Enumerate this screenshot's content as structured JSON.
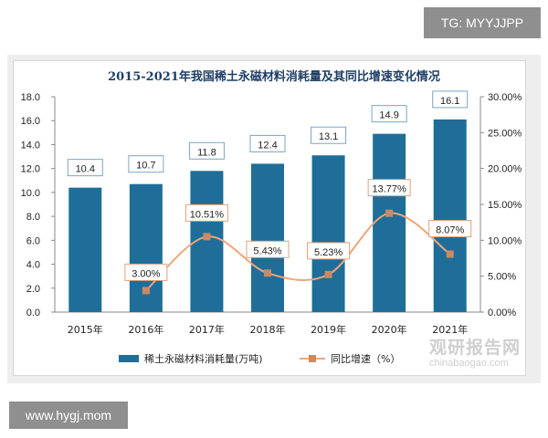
{
  "watermark_top": "TG: MYYJJPP",
  "watermark_bottom": "www.hygj.mom",
  "logo": {
    "name": "观研报告网",
    "url": "chinabaogao.com"
  },
  "chart_data": {
    "type": "bar",
    "title": "2015-2021年我国稀土永磁材料消耗量及其同比增速变化情况",
    "categories": [
      "2015年",
      "2016年",
      "2017年",
      "2018年",
      "2019年",
      "2020年",
      "2021年"
    ],
    "series": [
      {
        "name": "稀土永磁材料消耗量(万吨)",
        "type": "bar",
        "axis": "left",
        "values": [
          10.4,
          10.7,
          11.8,
          12.4,
          13.1,
          14.9,
          16.1
        ],
        "labels": [
          "10.4",
          "10.7",
          "11.8",
          "12.4",
          "13.1",
          "14.9",
          "16.1"
        ],
        "color": "#1f6e99"
      },
      {
        "name": "同比增速（%）",
        "type": "line",
        "axis": "right",
        "values": [
          null,
          3.0,
          10.51,
          5.43,
          5.23,
          13.77,
          8.07
        ],
        "labels": [
          null,
          "3.00%",
          "10.51%",
          "5.43%",
          "5.23%",
          "13.77%",
          "8.07%"
        ],
        "color": "#f0a57a",
        "marker_color": "#c98a64"
      }
    ],
    "y_left": {
      "min": 0,
      "max": 18,
      "step": 2,
      "ticks": [
        "0.0",
        "2.0",
        "4.0",
        "6.0",
        "8.0",
        "10.0",
        "12.0",
        "14.0",
        "16.0",
        "18.0"
      ]
    },
    "y_right": {
      "min": 0,
      "max": 30,
      "step": 5,
      "ticks": [
        "0.00%",
        "5.00%",
        "10.00%",
        "15.00%",
        "20.00%",
        "25.00%",
        "30.00%"
      ]
    },
    "grid": false,
    "legend_position": "bottom"
  }
}
